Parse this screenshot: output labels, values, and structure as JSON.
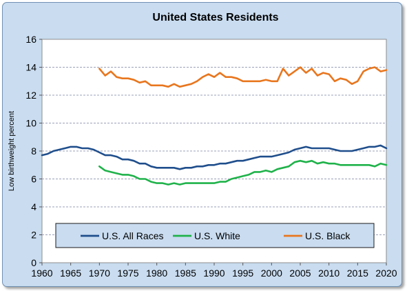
{
  "chart_data": {
    "type": "line",
    "title": "United States Residents",
    "xlabel": "",
    "ylabel": "Low birthweight percent",
    "xlim": [
      1960,
      2020
    ],
    "ylim": [
      0,
      16
    ],
    "x_ticks": [
      "1960",
      "1965",
      "1970",
      "1975",
      "1980",
      "1985",
      "1990",
      "1995",
      "2000",
      "2005",
      "2010",
      "2015",
      "2020"
    ],
    "y_ticks": [
      "0",
      "2",
      "4",
      "6",
      "8",
      "10",
      "12",
      "14",
      "16"
    ],
    "grid": "horizontal dashed",
    "legend_position": "bottom inside",
    "series": [
      {
        "name": "U.S. All Races",
        "color": "#1f4e8c",
        "x": [
          1960,
          1961,
          1962,
          1963,
          1964,
          1965,
          1966,
          1967,
          1968,
          1969,
          1970,
          1971,
          1972,
          1973,
          1974,
          1975,
          1976,
          1977,
          1978,
          1979,
          1980,
          1981,
          1982,
          1983,
          1984,
          1985,
          1986,
          1987,
          1988,
          1989,
          1990,
          1991,
          1992,
          1993,
          1994,
          1995,
          1996,
          1997,
          1998,
          1999,
          2000,
          2001,
          2002,
          2003,
          2004,
          2005,
          2006,
          2007,
          2008,
          2009,
          2010,
          2011,
          2012,
          2013,
          2014,
          2015,
          2016,
          2017,
          2018,
          2019,
          2020
        ],
        "y": [
          7.7,
          7.8,
          8.0,
          8.1,
          8.2,
          8.3,
          8.3,
          8.2,
          8.2,
          8.1,
          7.9,
          7.7,
          7.7,
          7.6,
          7.4,
          7.4,
          7.3,
          7.1,
          7.1,
          6.9,
          6.8,
          6.8,
          6.8,
          6.8,
          6.7,
          6.8,
          6.8,
          6.9,
          6.9,
          7.0,
          7.0,
          7.1,
          7.1,
          7.2,
          7.3,
          7.3,
          7.4,
          7.5,
          7.6,
          7.6,
          7.6,
          7.7,
          7.8,
          7.9,
          8.1,
          8.2,
          8.3,
          8.2,
          8.2,
          8.2,
          8.2,
          8.1,
          8.0,
          8.0,
          8.0,
          8.1,
          8.2,
          8.3,
          8.3,
          8.4,
          8.2
        ]
      },
      {
        "name": "U.S. White",
        "color": "#1fb24a",
        "x": [
          1970,
          1971,
          1972,
          1973,
          1974,
          1975,
          1976,
          1977,
          1978,
          1979,
          1980,
          1981,
          1982,
          1983,
          1984,
          1985,
          1986,
          1987,
          1988,
          1989,
          1990,
          1991,
          1992,
          1993,
          1994,
          1995,
          1996,
          1997,
          1998,
          1999,
          2000,
          2001,
          2002,
          2003,
          2004,
          2005,
          2006,
          2007,
          2008,
          2009,
          2010,
          2011,
          2012,
          2013,
          2014,
          2015,
          2016,
          2017,
          2018,
          2019,
          2020
        ],
        "y": [
          6.9,
          6.6,
          6.5,
          6.4,
          6.3,
          6.3,
          6.2,
          6.0,
          6.0,
          5.8,
          5.7,
          5.7,
          5.6,
          5.7,
          5.6,
          5.7,
          5.7,
          5.7,
          5.7,
          5.7,
          5.7,
          5.8,
          5.8,
          6.0,
          6.1,
          6.2,
          6.3,
          6.5,
          6.5,
          6.6,
          6.5,
          6.7,
          6.8,
          6.9,
          7.2,
          7.3,
          7.2,
          7.3,
          7.1,
          7.2,
          7.1,
          7.1,
          7.0,
          7.0,
          7.0,
          7.0,
          7.0,
          7.0,
          6.9,
          7.1,
          7.0
        ]
      },
      {
        "name": "U.S. Black",
        "color": "#e8761e",
        "x": [
          1970,
          1971,
          1972,
          1973,
          1974,
          1975,
          1976,
          1977,
          1978,
          1979,
          1980,
          1981,
          1982,
          1983,
          1984,
          1985,
          1986,
          1987,
          1988,
          1989,
          1990,
          1991,
          1992,
          1993,
          1994,
          1995,
          1996,
          1997,
          1998,
          1999,
          2000,
          2001,
          2002,
          2003,
          2004,
          2005,
          2006,
          2007,
          2008,
          2009,
          2010,
          2011,
          2012,
          2013,
          2014,
          2015,
          2016,
          2017,
          2018,
          2019,
          2020
        ],
        "y": [
          13.9,
          13.4,
          13.7,
          13.3,
          13.2,
          13.2,
          13.1,
          12.9,
          13.0,
          12.7,
          12.7,
          12.7,
          12.6,
          12.8,
          12.6,
          12.7,
          12.8,
          13.0,
          13.3,
          13.5,
          13.3,
          13.6,
          13.3,
          13.3,
          13.2,
          13.0,
          13.0,
          13.0,
          13.0,
          13.1,
          13.0,
          13.0,
          13.9,
          13.4,
          13.7,
          14.0,
          13.6,
          13.9,
          13.4,
          13.6,
          13.5,
          13.0,
          13.2,
          13.1,
          12.8,
          13.0,
          13.7,
          13.9,
          14.0,
          13.7,
          13.8
        ]
      }
    ]
  }
}
